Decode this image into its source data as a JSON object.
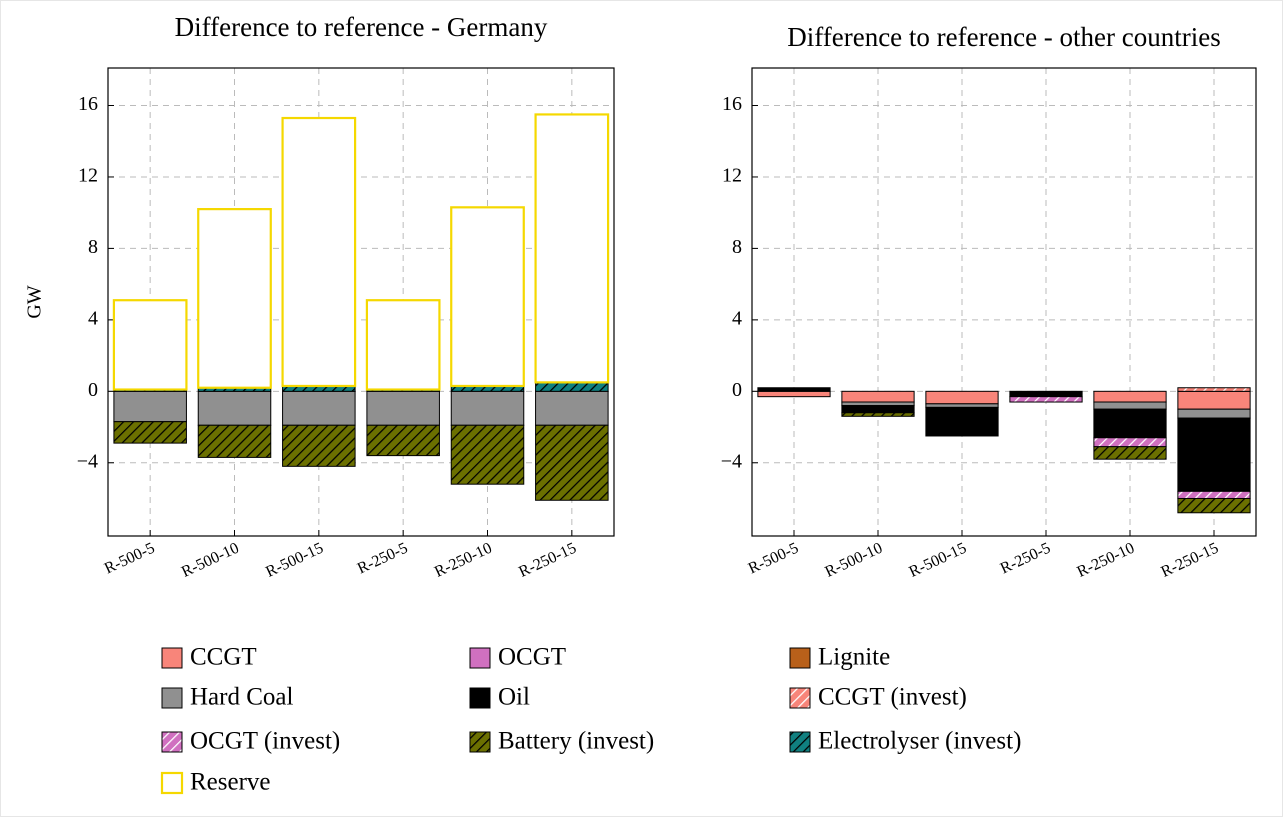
{
  "chart_data": [
    {
      "type": "bar",
      "title": "Difference to reference - Germany",
      "ylabel": "GW",
      "categories": [
        "R-500-5",
        "R-500-10",
        "R-500-15",
        "R-250-5",
        "R-250-10",
        "R-250-15"
      ],
      "ylim": [
        -8.1,
        18.1
      ],
      "yticks": [
        {
          "value": -4,
          "label": "−4"
        },
        0,
        4,
        8,
        12,
        16
      ],
      "grid": true,
      "stacked": true,
      "series": [
        {
          "name": "CCGT",
          "color": "#f8857a",
          "values": [
            0,
            0,
            0,
            0,
            0,
            0
          ]
        },
        {
          "name": "OCGT",
          "color": "#d070c0",
          "values": [
            0,
            0,
            0,
            0,
            0,
            0
          ]
        },
        {
          "name": "Lignite",
          "color": "#b8601a",
          "values": [
            0,
            0,
            0,
            0,
            0,
            0
          ]
        },
        {
          "name": "Hard Coal",
          "color": "#909090",
          "values": [
            -1.7,
            -1.9,
            -1.9,
            -1.9,
            -1.9,
            -1.9
          ]
        },
        {
          "name": "Oil",
          "color": "#000000",
          "values": [
            0,
            0,
            0,
            0,
            0,
            0
          ]
        },
        {
          "name": "CCGT (invest)",
          "color": "#f8857a",
          "hatch": true,
          "values": [
            0,
            0,
            0,
            0,
            0,
            0
          ]
        },
        {
          "name": "OCGT (invest)",
          "color": "#d070c0",
          "hatch": true,
          "values": [
            0,
            0,
            0,
            0,
            0,
            0
          ]
        },
        {
          "name": "Battery (invest)",
          "color": "#6b7000",
          "hatch": true,
          "values": [
            -1.2,
            -1.8,
            -2.3,
            -1.7,
            -3.3,
            -4.2
          ]
        },
        {
          "name": "Electrolyser (invest)",
          "color": "#108080",
          "hatch": true,
          "values": [
            0.1,
            0.2,
            0.3,
            0.1,
            0.3,
            0.5
          ]
        },
        {
          "name": "Reserve",
          "color": "#f5d800",
          "outline": true,
          "values": [
            5.0,
            10.0,
            15.0,
            5.0,
            10.0,
            15.0
          ]
        }
      ]
    },
    {
      "type": "bar",
      "title": "Difference to reference - other countries",
      "categories": [
        "R-500-5",
        "R-500-10",
        "R-500-15",
        "R-250-5",
        "R-250-10",
        "R-250-15"
      ],
      "ylim": [
        -8.1,
        18.1
      ],
      "yticks": [
        {
          "value": -4,
          "label": "−4"
        },
        0,
        4,
        8,
        12,
        16
      ],
      "grid": true,
      "stacked": true,
      "series": [
        {
          "values": [
            -0.3,
            -0.6,
            -0.7,
            0,
            -0.6,
            -1.0
          ]
        },
        {
          "values": [
            0,
            0,
            0,
            0,
            0,
            0
          ]
        },
        {
          "values": [
            0,
            0,
            0,
            0,
            0,
            0
          ]
        },
        {
          "values": [
            0,
            -0.2,
            -0.2,
            0,
            -0.4,
            -0.5
          ]
        },
        {
          "values": [
            0.2,
            -0.4,
            -1.6,
            -0.3,
            -1.6,
            -4.1
          ]
        },
        {
          "values": [
            0,
            0,
            0,
            0,
            0,
            0.2
          ]
        },
        {
          "values": [
            0,
            0,
            0,
            -0.3,
            -0.5,
            -0.4
          ]
        },
        {
          "values": [
            0,
            -0.2,
            0,
            0,
            -0.7,
            -0.8
          ]
        },
        {
          "values": [
            0,
            0,
            0,
            0,
            0,
            0
          ]
        },
        {
          "values": [
            0,
            0,
            0,
            0,
            0,
            0
          ]
        }
      ]
    }
  ]
}
